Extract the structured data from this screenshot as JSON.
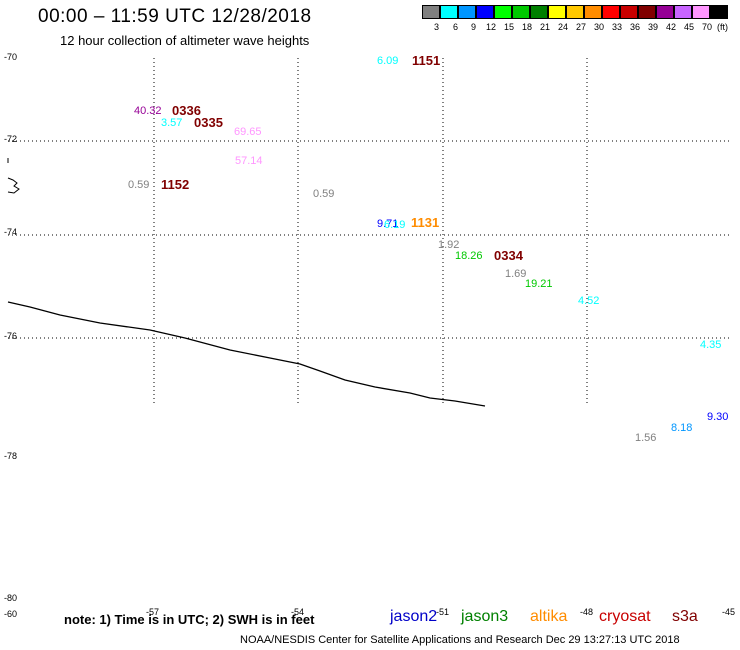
{
  "header": {
    "title": "00:00 – 11:59 UTC 12/28/2018",
    "subtitle": "12 hour collection of altimeter wave heights"
  },
  "color_scale": {
    "unit_label": "(ft)",
    "bins": [
      {
        "label": "3",
        "color": "#808080"
      },
      {
        "label": "6",
        "color": "#00ffff"
      },
      {
        "label": "9",
        "color": "#0096ff"
      },
      {
        "label": "12",
        "color": "#0000ff"
      },
      {
        "label": "15",
        "color": "#00ff00"
      },
      {
        "label": "18",
        "color": "#00c800"
      },
      {
        "label": "21",
        "color": "#008000"
      },
      {
        "label": "24",
        "color": "#ffff00"
      },
      {
        "label": "27",
        "color": "#ffc800"
      },
      {
        "label": "30",
        "color": "#ff8c00"
      },
      {
        "label": "33",
        "color": "#ff0000"
      },
      {
        "label": "36",
        "color": "#c80000"
      },
      {
        "label": "39",
        "color": "#800000"
      },
      {
        "label": "42",
        "color": "#960096"
      },
      {
        "label": "45",
        "color": "#c864ff"
      },
      {
        "label": "70",
        "color": "#ff96ff"
      },
      {
        "label": "",
        "color": "#000000"
      }
    ]
  },
  "axes": {
    "lat_labels": [
      "-70",
      "-72",
      "-74",
      "-76",
      "-78",
      "-80",
      "-60"
    ],
    "lon_labels": [
      "-57",
      "-54",
      "-51",
      "-48",
      "-45"
    ]
  },
  "wave_heights": [
    {
      "text": "6.09",
      "color": "#00ffff"
    },
    {
      "text": "40.32",
      "color": "#960096"
    },
    {
      "text": "3.57",
      "color": "#00ffff"
    },
    {
      "text": "69.65",
      "color": "#ff96ff"
    },
    {
      "text": "57.14",
      "color": "#ff96ff"
    },
    {
      "text": "0.59",
      "color": "#808080"
    },
    {
      "text": "0.59",
      "color": "#808080"
    },
    {
      "text": "9.71",
      "color": "#0000ff"
    },
    {
      "text": "6.19",
      "color": "#00ffff"
    },
    {
      "text": "1.92",
      "color": "#808080"
    },
    {
      "text": "18.26",
      "color": "#00c800"
    },
    {
      "text": "1.69",
      "color": "#808080"
    },
    {
      "text": "19.21",
      "color": "#00c800"
    },
    {
      "text": "4.52",
      "color": "#00ffff"
    },
    {
      "text": "4.35",
      "color": "#00ffff"
    },
    {
      "text": "9.30",
      "color": "#0000ff"
    },
    {
      "text": "8.18",
      "color": "#0096ff"
    },
    {
      "text": "1.56",
      "color": "#808080"
    }
  ],
  "pass_times": [
    {
      "text": "1151",
      "color": "#800000"
    },
    {
      "text": "0336",
      "color": "#800000"
    },
    {
      "text": "0335",
      "color": "#800000"
    },
    {
      "text": "1152",
      "color": "#800000"
    },
    {
      "text": "1131",
      "color": "#ff8c00"
    },
    {
      "text": "0334",
      "color": "#800000"
    }
  ],
  "footer": {
    "note": "note: 1) Time is in UTC; 2) SWH is in feet",
    "satellites": [
      {
        "name": "jason2",
        "color": "#0000c8"
      },
      {
        "name": "jason3",
        "color": "#008000"
      },
      {
        "name": "altika",
        "color": "#ff8c00"
      },
      {
        "name": "cryosat",
        "color": "#c80000"
      },
      {
        "name": "s3a",
        "color": "#800000"
      }
    ],
    "credit": "NOAA/NESDIS Center for Satellite Applications and Research    Dec 29 13:27:13 UTC 2018"
  }
}
